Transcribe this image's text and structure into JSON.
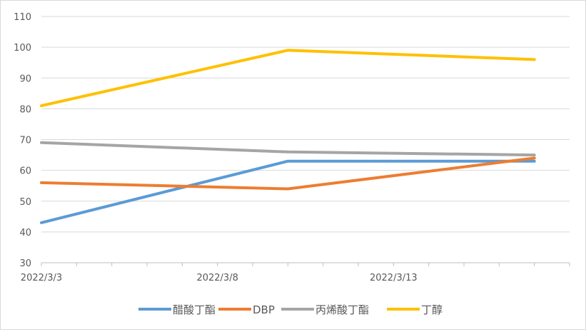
{
  "chart_data": {
    "type": "line",
    "x": [
      "2022/3/3",
      "2022/3/10",
      "2022/3/17"
    ],
    "x_tick_labels": [
      "2022/3/3",
      "2022/3/8",
      "2022/3/13"
    ],
    "xlim": [
      "2022/3/3",
      "2022/3/18"
    ],
    "ylim": [
      30,
      110
    ],
    "y_ticks": [
      30,
      40,
      50,
      60,
      70,
      80,
      90,
      100,
      110
    ],
    "grid": true,
    "legend": "bottom",
    "series": [
      {
        "name": "醋酸丁酯",
        "color": "#5b9bd5",
        "values": [
          43,
          63,
          63
        ]
      },
      {
        "name": "DBP",
        "color": "#ed7d31",
        "values": [
          56,
          54,
          64
        ]
      },
      {
        "name": "丙烯酸丁酯",
        "color": "#a5a5a5",
        "values": [
          69,
          66,
          65
        ]
      },
      {
        "name": "丁醇",
        "color": "#ffc000",
        "values": [
          81,
          99,
          96
        ]
      }
    ]
  }
}
